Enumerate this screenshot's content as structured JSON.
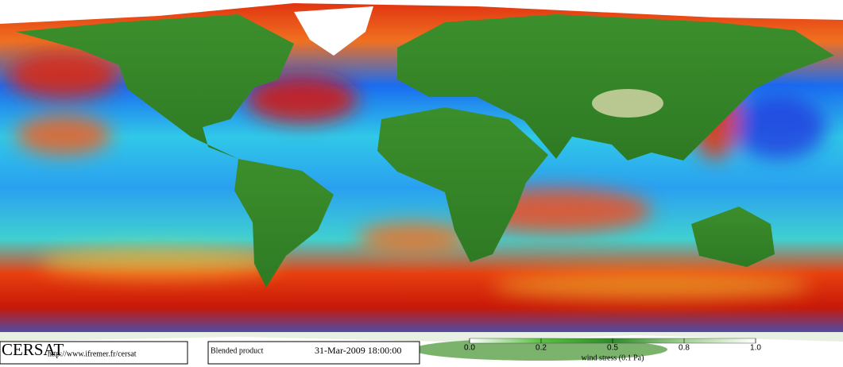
{
  "footer": {
    "logo": "CERSAT",
    "url": "http://www.ifremer.fr/cersat",
    "product": "Blended product",
    "timestamp": "31-Mar-2009 18:00:00"
  },
  "colorbar": {
    "label": "wind stress (0.1 Pa)",
    "ticks": [
      {
        "value": 0,
        "label": "0.0"
      },
      0.2,
      0.5,
      0.8,
      {
        "value": 1,
        "label": "1.0"
      }
    ]
  }
}
